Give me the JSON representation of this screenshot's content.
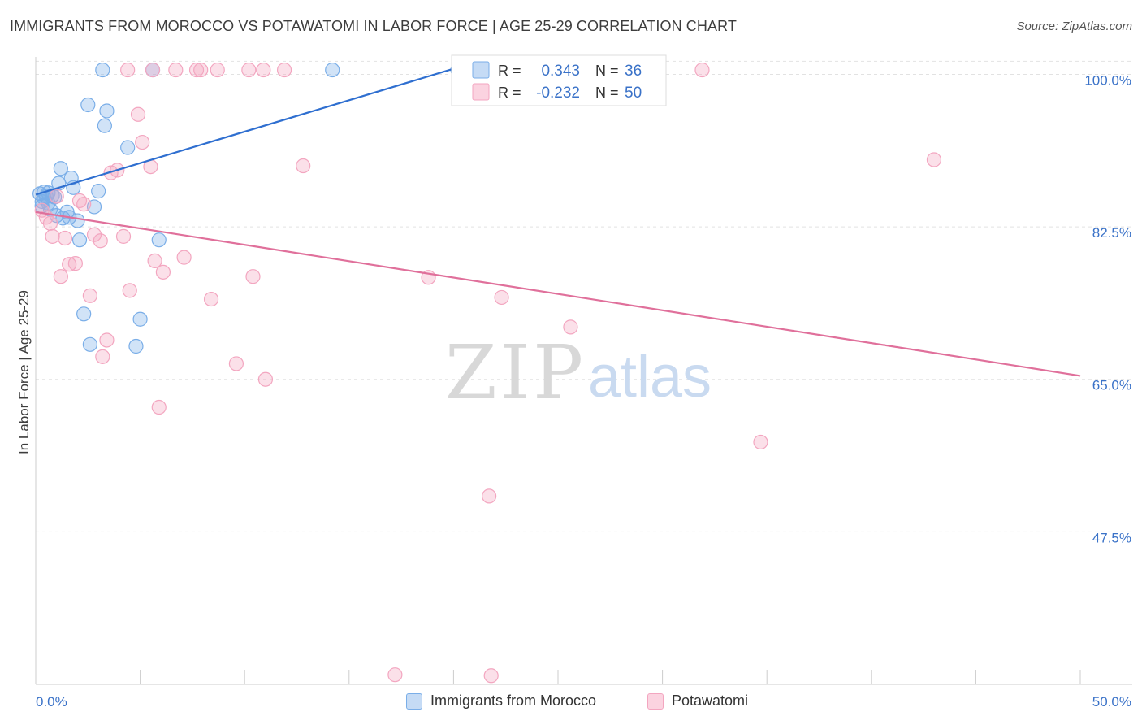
{
  "title": "IMMIGRANTS FROM MOROCCO VS POTAWATOMI IN LABOR FORCE | AGE 25-29 CORRELATION CHART",
  "source": "Source: ZipAtlas.com",
  "watermark": {
    "zip": "ZIP",
    "atlas": "atlas"
  },
  "chart_data": {
    "type": "scatter",
    "title": "IMMIGRANTS FROM MOROCCO VS POTAWATOMI IN LABOR FORCE | AGE 25-29 CORRELATION CHART",
    "xlabel": "",
    "ylabel": "In Labor Force | Age 25-29",
    "xlim": [
      0,
      50
    ],
    "ylim": [
      30,
      102
    ],
    "x_tick_labels": [
      "0.0%",
      "50.0%"
    ],
    "y_ticks": [
      47.5,
      65.0,
      82.5,
      100.0
    ],
    "y_tick_labels": [
      "47.5%",
      "65.0%",
      "82.5%",
      "100.0%"
    ],
    "grid": true,
    "legend_placement": "top-center",
    "series": [
      {
        "name": "Immigrants from Morocco",
        "color": "#7aaee8",
        "line_color": "#2f6fd0",
        "stats": {
          "r_label": "R =",
          "r": "0.343",
          "n_label": "N =",
          "n": "36"
        },
        "trend": {
          "x": [
            0,
            20.5
          ],
          "y": [
            86.2,
            101.0
          ]
        },
        "points": [
          [
            0.2,
            86.3
          ],
          [
            0.3,
            85.4
          ],
          [
            0.4,
            85.8
          ],
          [
            0.4,
            86.5
          ],
          [
            0.5,
            86.0
          ],
          [
            0.6,
            85.2
          ],
          [
            0.7,
            84.5
          ],
          [
            0.8,
            86.1
          ],
          [
            0.9,
            85.9
          ],
          [
            1.1,
            87.5
          ],
          [
            1.2,
            89.2
          ],
          [
            1.3,
            83.5
          ],
          [
            1.5,
            84.2
          ],
          [
            1.6,
            83.6
          ],
          [
            1.7,
            88.1
          ],
          [
            1.8,
            87.0
          ],
          [
            2.0,
            83.2
          ],
          [
            2.1,
            81.0
          ],
          [
            2.3,
            72.5
          ],
          [
            2.5,
            96.5
          ],
          [
            2.6,
            69.0
          ],
          [
            2.8,
            84.8
          ],
          [
            3.0,
            86.6
          ],
          [
            3.2,
            100.5
          ],
          [
            3.3,
            94.1
          ],
          [
            3.4,
            95.8
          ],
          [
            4.4,
            91.6
          ],
          [
            4.8,
            68.8
          ],
          [
            5.0,
            71.9
          ],
          [
            5.6,
            100.5
          ],
          [
            5.9,
            81.0
          ],
          [
            14.2,
            100.5
          ],
          [
            20.2,
            100.5
          ],
          [
            0.6,
            86.4
          ],
          [
            1.0,
            83.8
          ],
          [
            0.3,
            84.9
          ]
        ]
      },
      {
        "name": "Potawatomi",
        "color": "#f3a6c0",
        "line_color": "#e0709b",
        "stats": {
          "r_label": "R =",
          "r": "-0.232",
          "n_label": "N =",
          "n": "50"
        },
        "trend": {
          "x": [
            0,
            50
          ],
          "y": [
            84.2,
            65.4
          ]
        },
        "points": [
          [
            0.3,
            84.4
          ],
          [
            0.5,
            83.6
          ],
          [
            0.7,
            82.9
          ],
          [
            0.8,
            81.4
          ],
          [
            1.0,
            86.0
          ],
          [
            1.2,
            76.8
          ],
          [
            1.4,
            81.2
          ],
          [
            1.6,
            78.2
          ],
          [
            1.9,
            78.3
          ],
          [
            2.1,
            85.5
          ],
          [
            2.3,
            85.1
          ],
          [
            2.6,
            74.6
          ],
          [
            2.8,
            81.6
          ],
          [
            3.1,
            80.9
          ],
          [
            3.2,
            67.6
          ],
          [
            3.4,
            69.5
          ],
          [
            3.6,
            88.7
          ],
          [
            3.9,
            89.0
          ],
          [
            4.2,
            81.4
          ],
          [
            4.4,
            100.5
          ],
          [
            4.5,
            75.2
          ],
          [
            4.9,
            95.4
          ],
          [
            5.1,
            92.2
          ],
          [
            5.5,
            89.4
          ],
          [
            5.6,
            100.5
          ],
          [
            5.7,
            78.6
          ],
          [
            5.9,
            61.8
          ],
          [
            6.1,
            77.3
          ],
          [
            6.7,
            100.5
          ],
          [
            7.1,
            79.0
          ],
          [
            7.7,
            100.5
          ],
          [
            7.9,
            100.5
          ],
          [
            8.4,
            74.2
          ],
          [
            8.7,
            100.5
          ],
          [
            9.6,
            66.8
          ],
          [
            10.2,
            100.5
          ],
          [
            10.4,
            76.8
          ],
          [
            10.9,
            100.5
          ],
          [
            11.0,
            65.0
          ],
          [
            11.9,
            100.5
          ],
          [
            12.8,
            89.5
          ],
          [
            18.8,
            76.7
          ],
          [
            21.7,
            51.6
          ],
          [
            21.8,
            31.0
          ],
          [
            22.3,
            74.4
          ],
          [
            25.6,
            71.0
          ],
          [
            31.9,
            100.5
          ],
          [
            34.7,
            57.8
          ],
          [
            43.0,
            90.2
          ],
          [
            17.2,
            31.1
          ]
        ]
      }
    ]
  }
}
